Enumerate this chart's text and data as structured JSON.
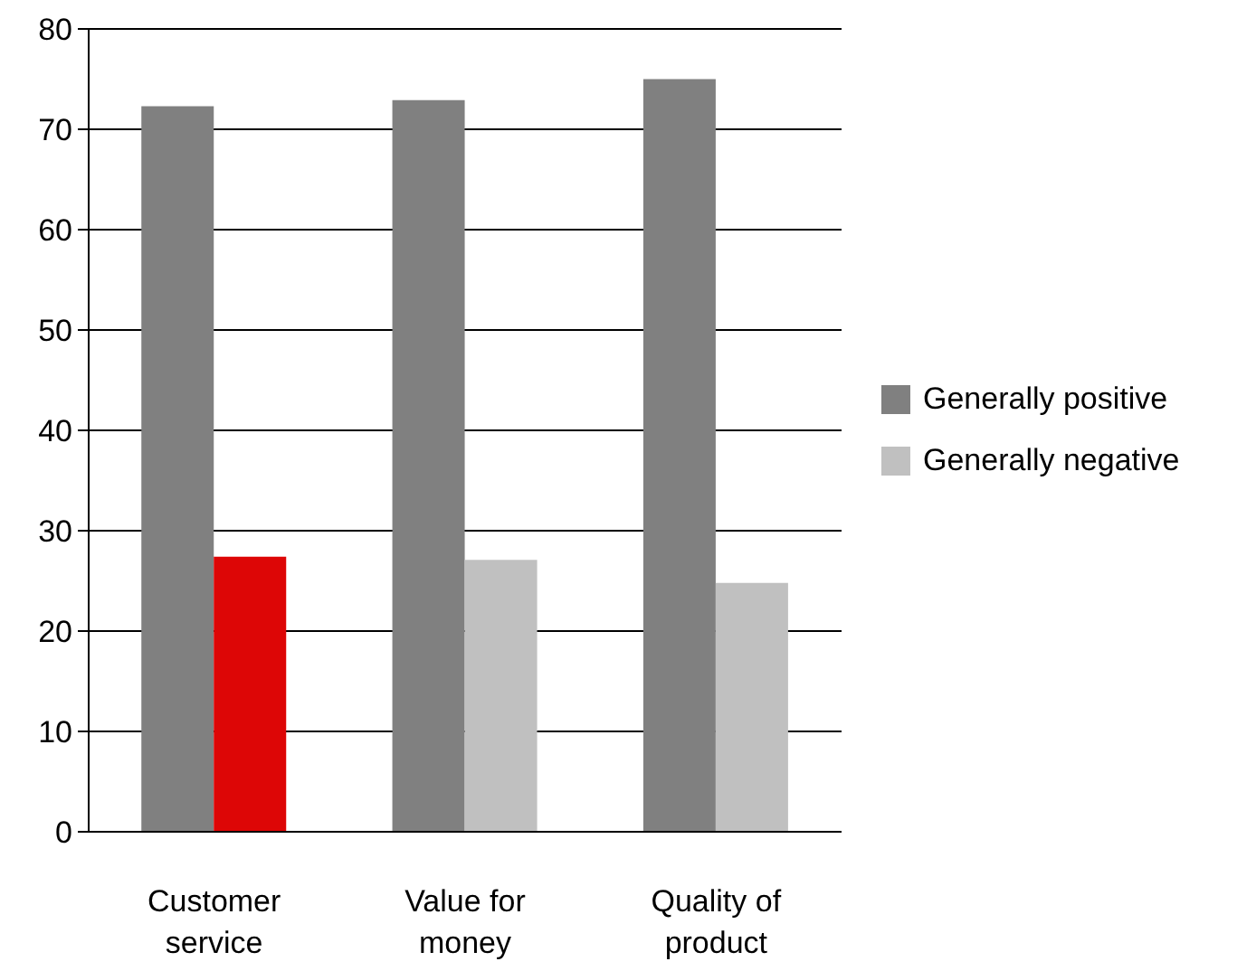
{
  "chart_data": {
    "type": "bar",
    "categories": [
      "Customer service",
      "Value for money",
      "Quality of product"
    ],
    "series": [
      {
        "name": "Generally positive",
        "color": "#808080",
        "values": [
          72.3,
          72.9,
          75.0
        ]
      },
      {
        "name": "Generally negative",
        "color": "#c0c0c0",
        "colors": [
          "#dd0606",
          "#c0c0c0",
          "#c0c0c0"
        ],
        "values": [
          27.4,
          27.1,
          24.8
        ]
      }
    ],
    "ylim": [
      0,
      80
    ],
    "yticks": [
      0,
      10,
      20,
      30,
      40,
      50,
      60,
      70,
      80
    ],
    "grid": "y",
    "legend": "right"
  }
}
